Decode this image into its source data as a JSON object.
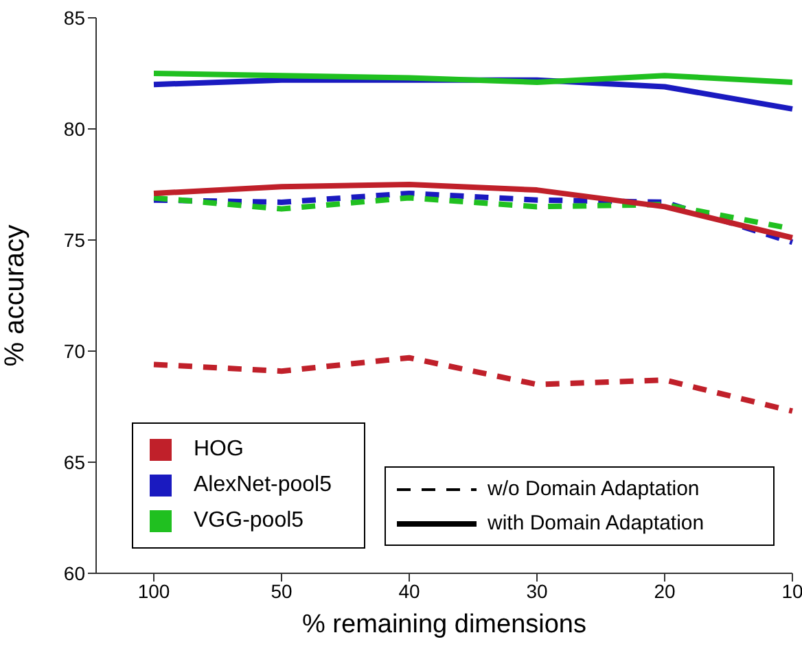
{
  "chart_data": {
    "type": "line",
    "xlabel": "% remaining dimensions",
    "ylabel": "% accuracy",
    "categories": [
      "100",
      "50",
      "40",
      "30",
      "20",
      "10"
    ],
    "ylim": [
      60,
      85
    ],
    "yticks": [
      60,
      65,
      70,
      75,
      80,
      85
    ],
    "grid": false,
    "legend": "bottom left",
    "marker": "none",
    "annotations": [
      "w/o Domain Adaptation",
      "with Domain Adaptation"
    ],
    "series": [
      {
        "name": "HOG",
        "color": "#c0202a",
        "line_style": "dashed",
        "values": [
          69.4,
          69.1,
          69.7,
          68.5,
          68.7,
          67.3
        ]
      },
      {
        "name": "AlexNet-pool5",
        "color": "#1a1ac0",
        "line_style": "dashed",
        "values": [
          76.8,
          76.7,
          77.1,
          76.8,
          76.7,
          74.9
        ]
      },
      {
        "name": "VGG-pool5",
        "color": "#20c020",
        "line_style": "dashed",
        "values": [
          76.9,
          76.4,
          76.9,
          76.5,
          76.6,
          75.5
        ]
      },
      {
        "color": "#c0202a",
        "line_style": "solid",
        "values": [
          77.1,
          77.4,
          77.5,
          77.25,
          76.5,
          75.1
        ]
      },
      {
        "color": "#1a1ac0",
        "line_style": "solid",
        "values": [
          82.0,
          82.2,
          82.2,
          82.2,
          81.9,
          80.9
        ]
      },
      {
        "color": "#20c020",
        "line_style": "solid",
        "values": [
          82.5,
          82.4,
          82.3,
          82.1,
          82.4,
          82.1
        ]
      }
    ]
  }
}
